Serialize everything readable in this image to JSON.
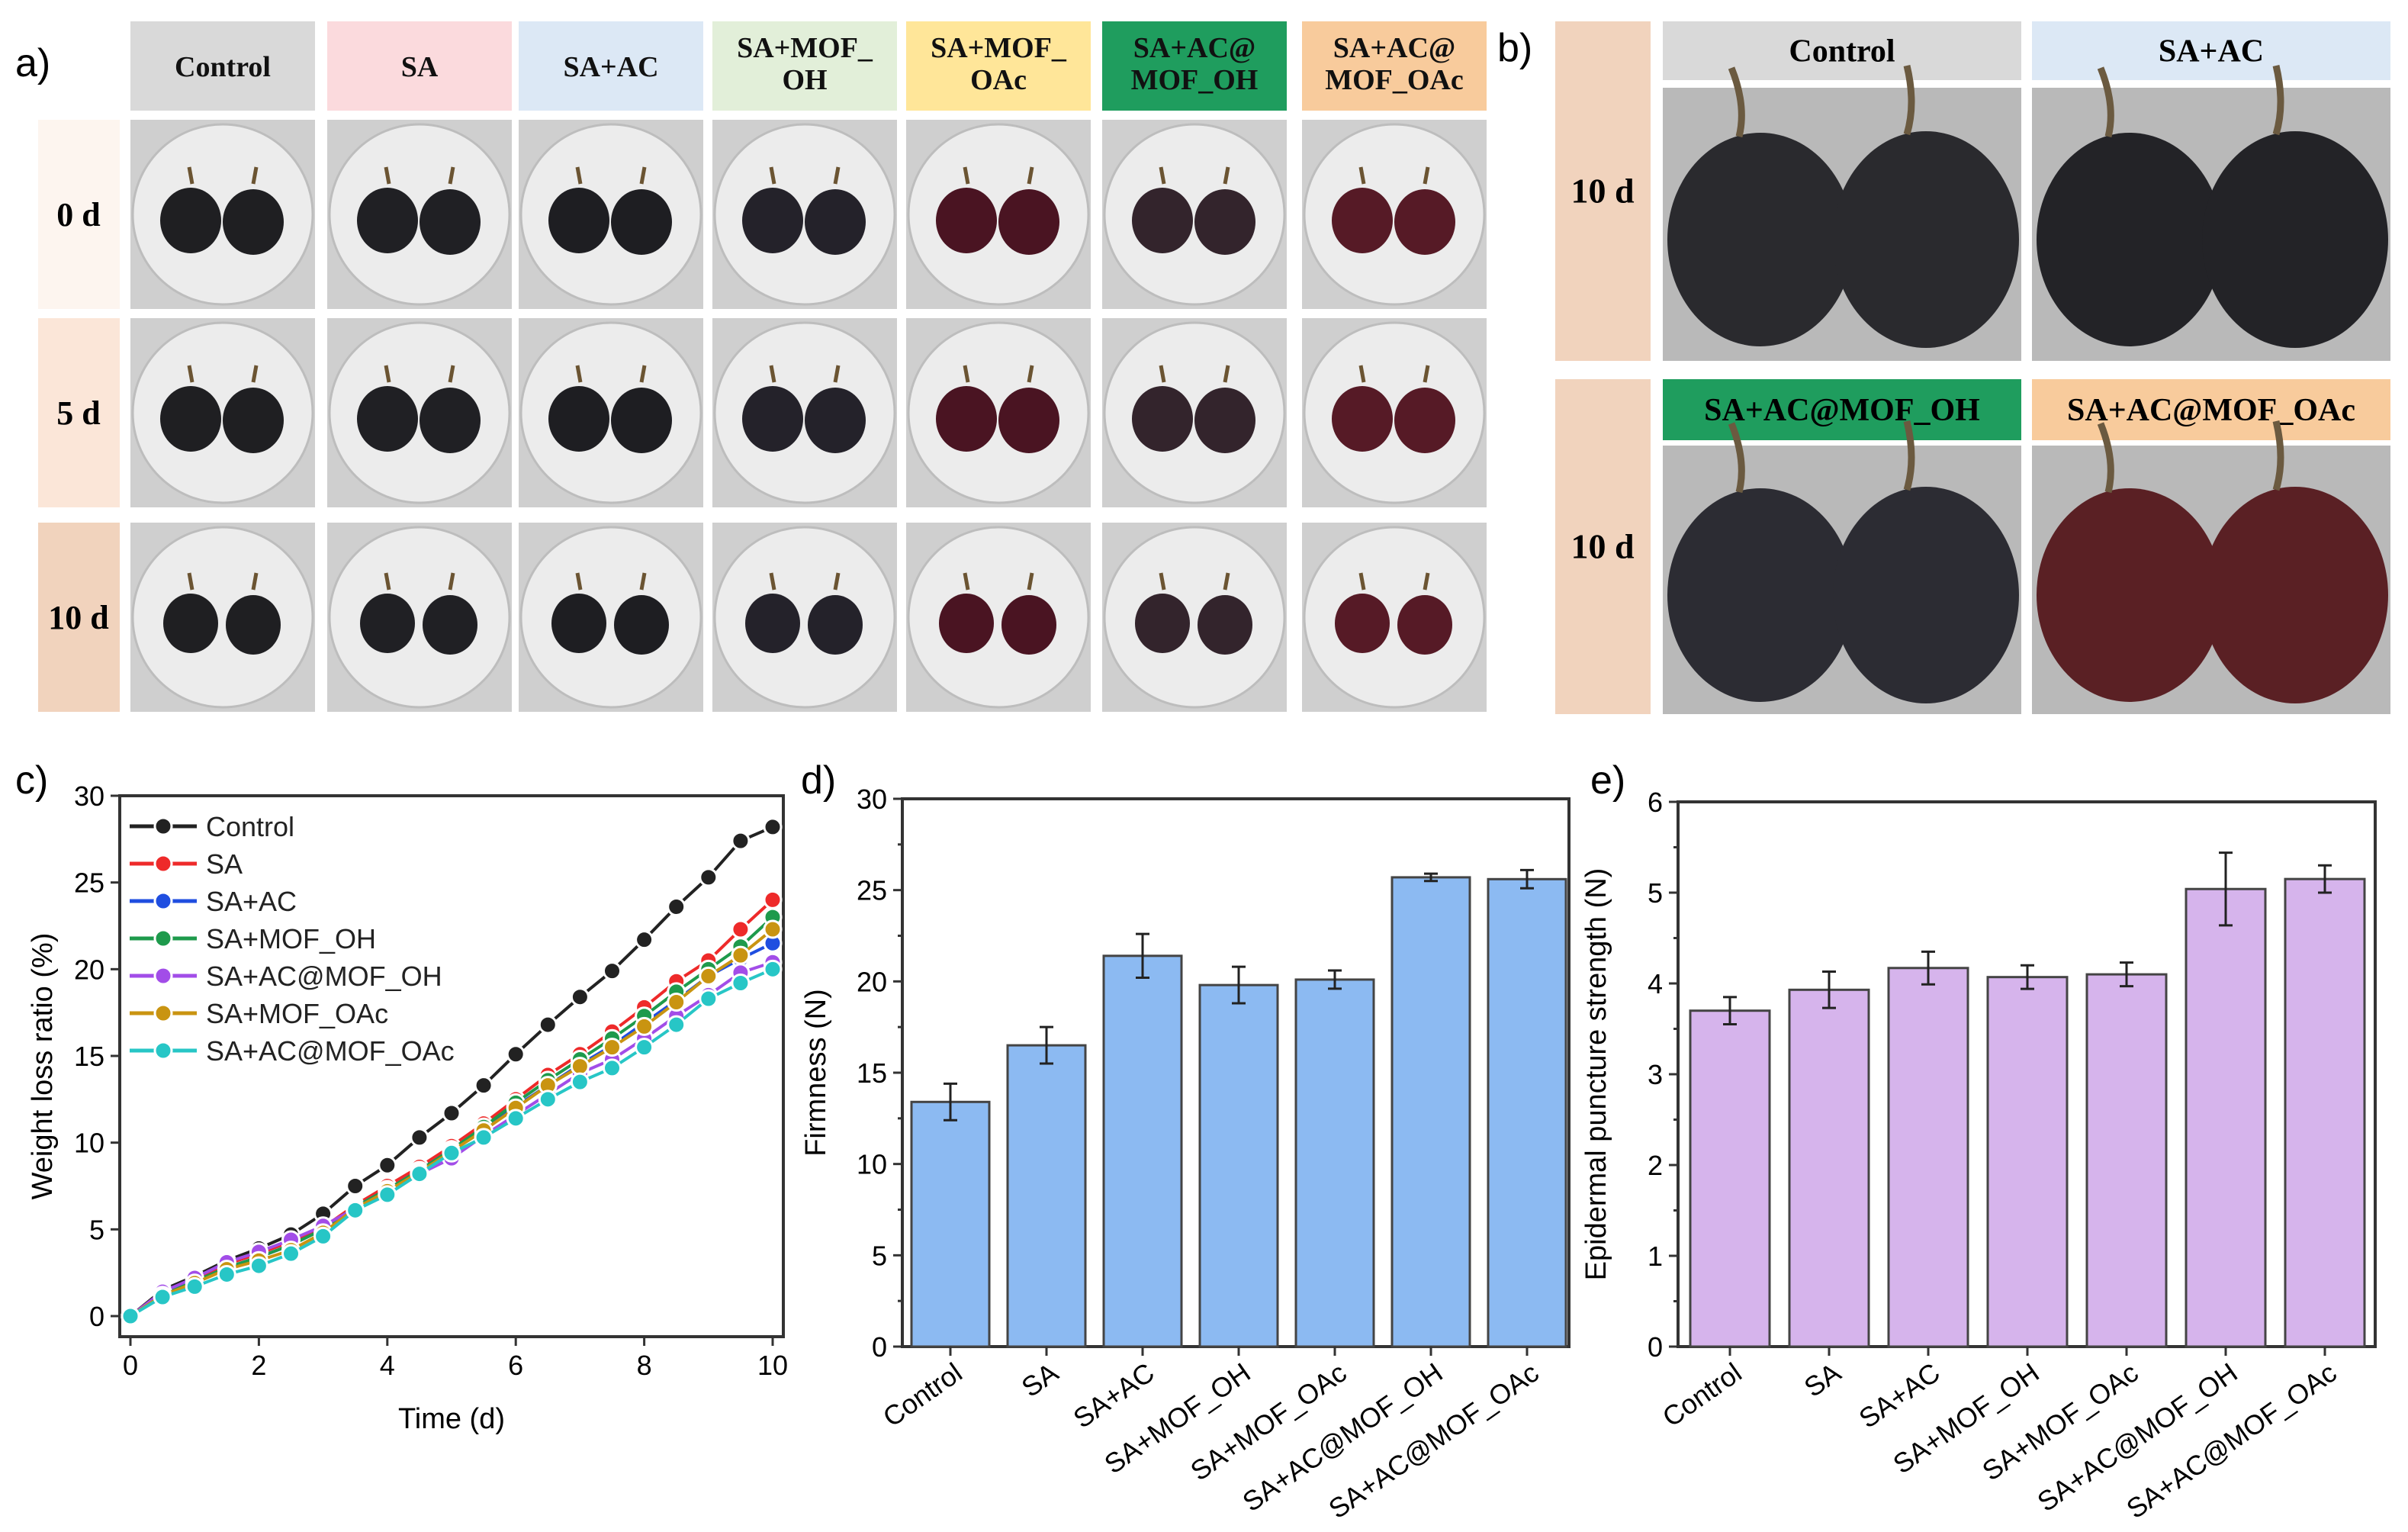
{
  "panel_labels": {
    "a": "a)",
    "b": "b)",
    "c": "c)",
    "d": "d)",
    "e": "e)"
  },
  "panel_a": {
    "columns": [
      {
        "label": [
          "Control"
        ],
        "bg": "#d9d9d9",
        "fg": "#111111",
        "grape": "#1f1f22"
      },
      {
        "label": [
          "SA"
        ],
        "bg": "#fbdadd",
        "fg": "#111111",
        "grape": "#202024"
      },
      {
        "label": [
          "SA+AC"
        ],
        "bg": "#dce8f5",
        "fg": "#111111",
        "grape": "#1e1e22"
      },
      {
        "label": [
          "SA+MOF_",
          "OH"
        ],
        "bg": "#e2efd9",
        "fg": "#111111",
        "grape": "#24222a"
      },
      {
        "label": [
          "SA+MOF_",
          "OAc"
        ],
        "bg": "#ffe699",
        "fg": "#111111",
        "grape": "#4a1422"
      },
      {
        "label": [
          "SA+AC@",
          "MOF_OH"
        ],
        "bg": "#1f9d5e",
        "fg": "#111111",
        "grape": "#33242c"
      },
      {
        "label": [
          "SA+AC@",
          "MOF_OAc"
        ],
        "bg": "#f8cb9c",
        "fg": "#111111",
        "grape": "#561a26"
      }
    ],
    "rows": [
      {
        "label": "0 d",
        "bg": "#fdf5ef"
      },
      {
        "label": "5 d",
        "bg": "#fbe6d8"
      },
      {
        "label": "10 d",
        "bg": "#f1d3bd"
      }
    ]
  },
  "panel_b": {
    "row_label": "10 d",
    "cells": [
      {
        "label": "Control",
        "bg": "#d9d9d9",
        "grape": "#2a2a2e"
      },
      {
        "label": "SA+AC",
        "bg": "#dce8f5",
        "grape": "#232327"
      },
      {
        "label": "SA+AC@MOF_OH",
        "bg": "#1f9d5e",
        "grape": "#2c2c33"
      },
      {
        "label": "SA+AC@MOF_OAc",
        "bg": "#f8cb9c",
        "grape": "#5a2024"
      }
    ],
    "row_bg": "#f1d3bd"
  },
  "chart_data": [
    {
      "id": "c",
      "type": "line",
      "xlabel": "Time (d)",
      "ylabel": "Weight loss ratio (%)",
      "xlim": [
        0,
        10
      ],
      "ylim": [
        0,
        30
      ],
      "xticks": [
        0,
        2,
        4,
        6,
        8,
        10
      ],
      "yticks": [
        0,
        5,
        10,
        15,
        20,
        25,
        30
      ],
      "legend_position": "top-left",
      "x": [
        0,
        0.5,
        1,
        1.5,
        2,
        2.5,
        3,
        3.5,
        4,
        4.5,
        5,
        5.5,
        6,
        6.5,
        7,
        7.5,
        8,
        8.5,
        9,
        9.5,
        10
      ],
      "series": [
        {
          "name": "Control",
          "color": "#222222",
          "values": [
            0,
            1.5,
            2.3,
            3.2,
            3.9,
            4.7,
            5.9,
            7.5,
            8.7,
            10.3,
            11.7,
            13.3,
            15.1,
            16.8,
            18.4,
            19.9,
            21.7,
            23.6,
            25.3,
            27.4,
            28.2
          ]
        },
        {
          "name": "SA",
          "color": "#ee2a2a",
          "values": [
            0,
            1.4,
            2.1,
            3.0,
            3.6,
            4.3,
            5.1,
            6.4,
            7.5,
            8.6,
            9.8,
            11.1,
            12.5,
            13.9,
            15.1,
            16.4,
            17.8,
            19.3,
            20.5,
            22.3,
            24.0
          ]
        },
        {
          "name": "SA+AC",
          "color": "#1f4ee0",
          "values": [
            0,
            1.3,
            2.0,
            2.8,
            3.4,
            4.1,
            5.0,
            6.3,
            7.3,
            8.4,
            9.6,
            10.8,
            12.1,
            13.3,
            14.5,
            15.6,
            16.9,
            18.2,
            19.6,
            20.6,
            21.5
          ]
        },
        {
          "name": "SA+MOF_OH",
          "color": "#1e9a4c",
          "values": [
            0,
            1.3,
            2.0,
            2.8,
            3.4,
            4.1,
            5.0,
            6.3,
            7.3,
            8.4,
            9.6,
            10.9,
            12.3,
            13.6,
            14.8,
            16.0,
            17.3,
            18.7,
            20.0,
            21.3,
            23.0
          ]
        },
        {
          "name": "SA+AC@MOF_OH",
          "color": "#a24de8",
          "values": [
            0,
            1.4,
            2.2,
            3.1,
            3.7,
            4.4,
            5.2,
            6.2,
            7.2,
            8.2,
            9.1,
            10.4,
            11.6,
            12.8,
            14.0,
            14.8,
            16.0,
            17.3,
            18.5,
            19.8,
            20.4
          ]
        },
        {
          "name": "SA+MOF_OAc",
          "color": "#c99411",
          "values": [
            0,
            1.2,
            1.9,
            2.7,
            3.2,
            3.8,
            4.8,
            6.2,
            7.2,
            8.3,
            9.5,
            10.7,
            12.0,
            13.3,
            14.4,
            15.5,
            16.7,
            18.1,
            19.6,
            20.8,
            22.3
          ]
        },
        {
          "name": "SA+AC@MOF_OAc",
          "color": "#27c6c6",
          "values": [
            0,
            1.1,
            1.7,
            2.4,
            2.9,
            3.6,
            4.6,
            6.1,
            7.0,
            8.2,
            9.4,
            10.3,
            11.4,
            12.5,
            13.5,
            14.3,
            15.5,
            16.8,
            18.3,
            19.2,
            20.0
          ]
        }
      ]
    },
    {
      "id": "d",
      "type": "bar",
      "ylabel": "Firmness (N)",
      "xlabel": "",
      "ylim": [
        0,
        30
      ],
      "yticks": [
        0,
        5,
        10,
        15,
        20,
        25,
        30
      ],
      "bar_color": "#8cbaf2",
      "categories": [
        "Control",
        "SA",
        "SA+AC",
        "SA+MOF_OH",
        "SA+MOF_OAc",
        "SA+AC@MOF_OH",
        "SA+AC@MOF_OAc"
      ],
      "values": [
        13.4,
        16.5,
        21.4,
        19.8,
        20.1,
        25.7,
        25.6
      ],
      "errors": [
        1.0,
        1.0,
        1.2,
        1.0,
        0.5,
        0.2,
        0.5
      ]
    },
    {
      "id": "e",
      "type": "bar",
      "ylabel": "Epidermal puncture strength (N)",
      "xlabel": "",
      "ylim": [
        0,
        6
      ],
      "yticks": [
        0,
        1,
        2,
        3,
        4,
        5,
        6
      ],
      "bar_color": "#d6b4ec",
      "categories": [
        "Control",
        "SA",
        "SA+AC",
        "SA+MOF_OH",
        "SA+MOF_OAc",
        "SA+AC@MOF_OH",
        "SA+AC@MOF_OAc"
      ],
      "values": [
        3.7,
        3.93,
        4.17,
        4.07,
        4.1,
        5.04,
        5.15
      ],
      "errors": [
        0.15,
        0.2,
        0.18,
        0.13,
        0.13,
        0.4,
        0.15
      ]
    }
  ]
}
